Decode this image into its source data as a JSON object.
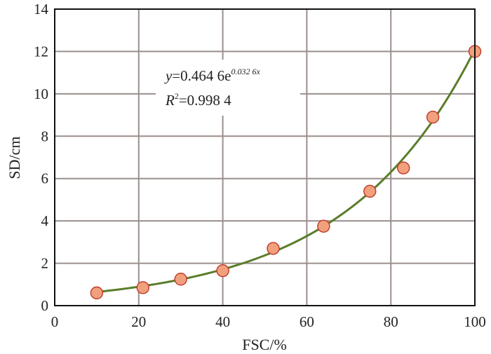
{
  "chart_data": {
    "type": "scatter",
    "xlabel": "FSC/%",
    "ylabel": "SD/cm",
    "xlim": [
      0,
      100
    ],
    "ylim": [
      0,
      14
    ],
    "x_ticks": [
      "0",
      "20",
      "40",
      "60",
      "80",
      "100"
    ],
    "y_ticks": [
      "0",
      "2",
      "4",
      "6",
      "8",
      "10",
      "12",
      "14"
    ],
    "grid": true,
    "legend": "none",
    "series": [
      {
        "points": [
          {
            "x": 10,
            "y": 0.6
          },
          {
            "x": 21,
            "y": 0.85
          },
          {
            "x": 30,
            "y": 1.25
          },
          {
            "x": 40,
            "y": 1.65
          },
          {
            "x": 52,
            "y": 2.7
          },
          {
            "x": 64,
            "y": 3.75
          },
          {
            "x": 75,
            "y": 5.4
          },
          {
            "x": 83,
            "y": 6.5
          },
          {
            "x": 90,
            "y": 8.9
          },
          {
            "x": 100,
            "y": 12.0
          }
        ],
        "marker_color": "#f0a07c",
        "marker_edge": "#c0392b"
      }
    ],
    "fit": {
      "type": "exponential",
      "a": 0.4646,
      "b": 0.0326,
      "x_range": [
        10,
        100
      ],
      "color": "#5a7d2a"
    },
    "annotation": {
      "equation_prefix": "y",
      "equation_body": "=0.464 6e",
      "equation_exponent": "0.032 6x",
      "r2_prefix": "R",
      "r2_sup": "2",
      "r2_body": "=0.998 4"
    },
    "colors": {
      "grid": "#9a8f8c",
      "axis": "#111111"
    }
  }
}
